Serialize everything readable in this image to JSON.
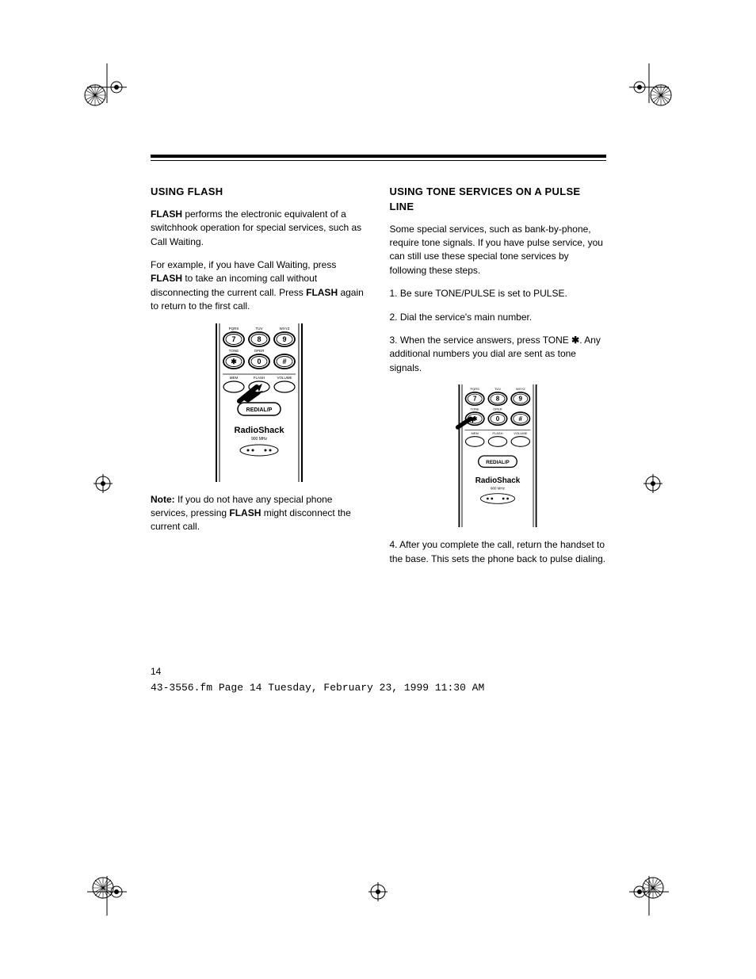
{
  "page": {
    "number": "14",
    "footer_meta": "43-3556.fm  Page 14  Tuesday, February 23, 1999  11:30 AM"
  },
  "left_column": {
    "title": "USING FLASH",
    "p1_a": "FLASH",
    "p1_b": " performs the electronic equivalent of a switchhook operation for special services, such as Call Waiting.",
    "p2_a": "For example, if you have Call Waiting, press ",
    "p2_b": "FLASH",
    "p2_c": " to take an incoming call without disconnecting the current call. Press ",
    "p2_d": "FLASH",
    "p2_e": " again to return to the first call.",
    "note_label": "Note:",
    "note_a": " If you do not have any special phone services, pressing ",
    "note_b": "FLASH",
    "note_c": " might disconnect the current call."
  },
  "right_column": {
    "title": "USING TONE SERVICES ON A PULSE LINE",
    "p1": "Some special services, such as bank-by-phone, require tone signals. If you have pulse service, you can still use these special tone services by following these steps.",
    "step1": "1. Be sure TONE/PULSE is set to PULSE.",
    "step2": "2. Dial the service's main number.",
    "step3_a": "3. When the service answers, press TONE ",
    "step3_b": ". Any additional numbers you dial are sent as tone signals.",
    "step4": "4. After you complete the call, return the handset to the base. This sets the phone back to pulse dialing."
  },
  "diagram": {
    "keys_row1": [
      "7",
      "8",
      "9"
    ],
    "keys_row1_labels": [
      "PQRS",
      "TUV",
      "WXYZ"
    ],
    "keys_row2": [
      "*",
      "0",
      "#"
    ],
    "keys_row2_labels": [
      "TONE",
      "OPER",
      ""
    ],
    "fn_labels": [
      "MEM",
      "FLASH",
      "VOLUME"
    ],
    "redial": "REDIAL/P",
    "brand": "RadioShack",
    "sub": "900 MHz",
    "colors": {
      "stroke": "#000000",
      "bg": "#ffffff"
    }
  }
}
